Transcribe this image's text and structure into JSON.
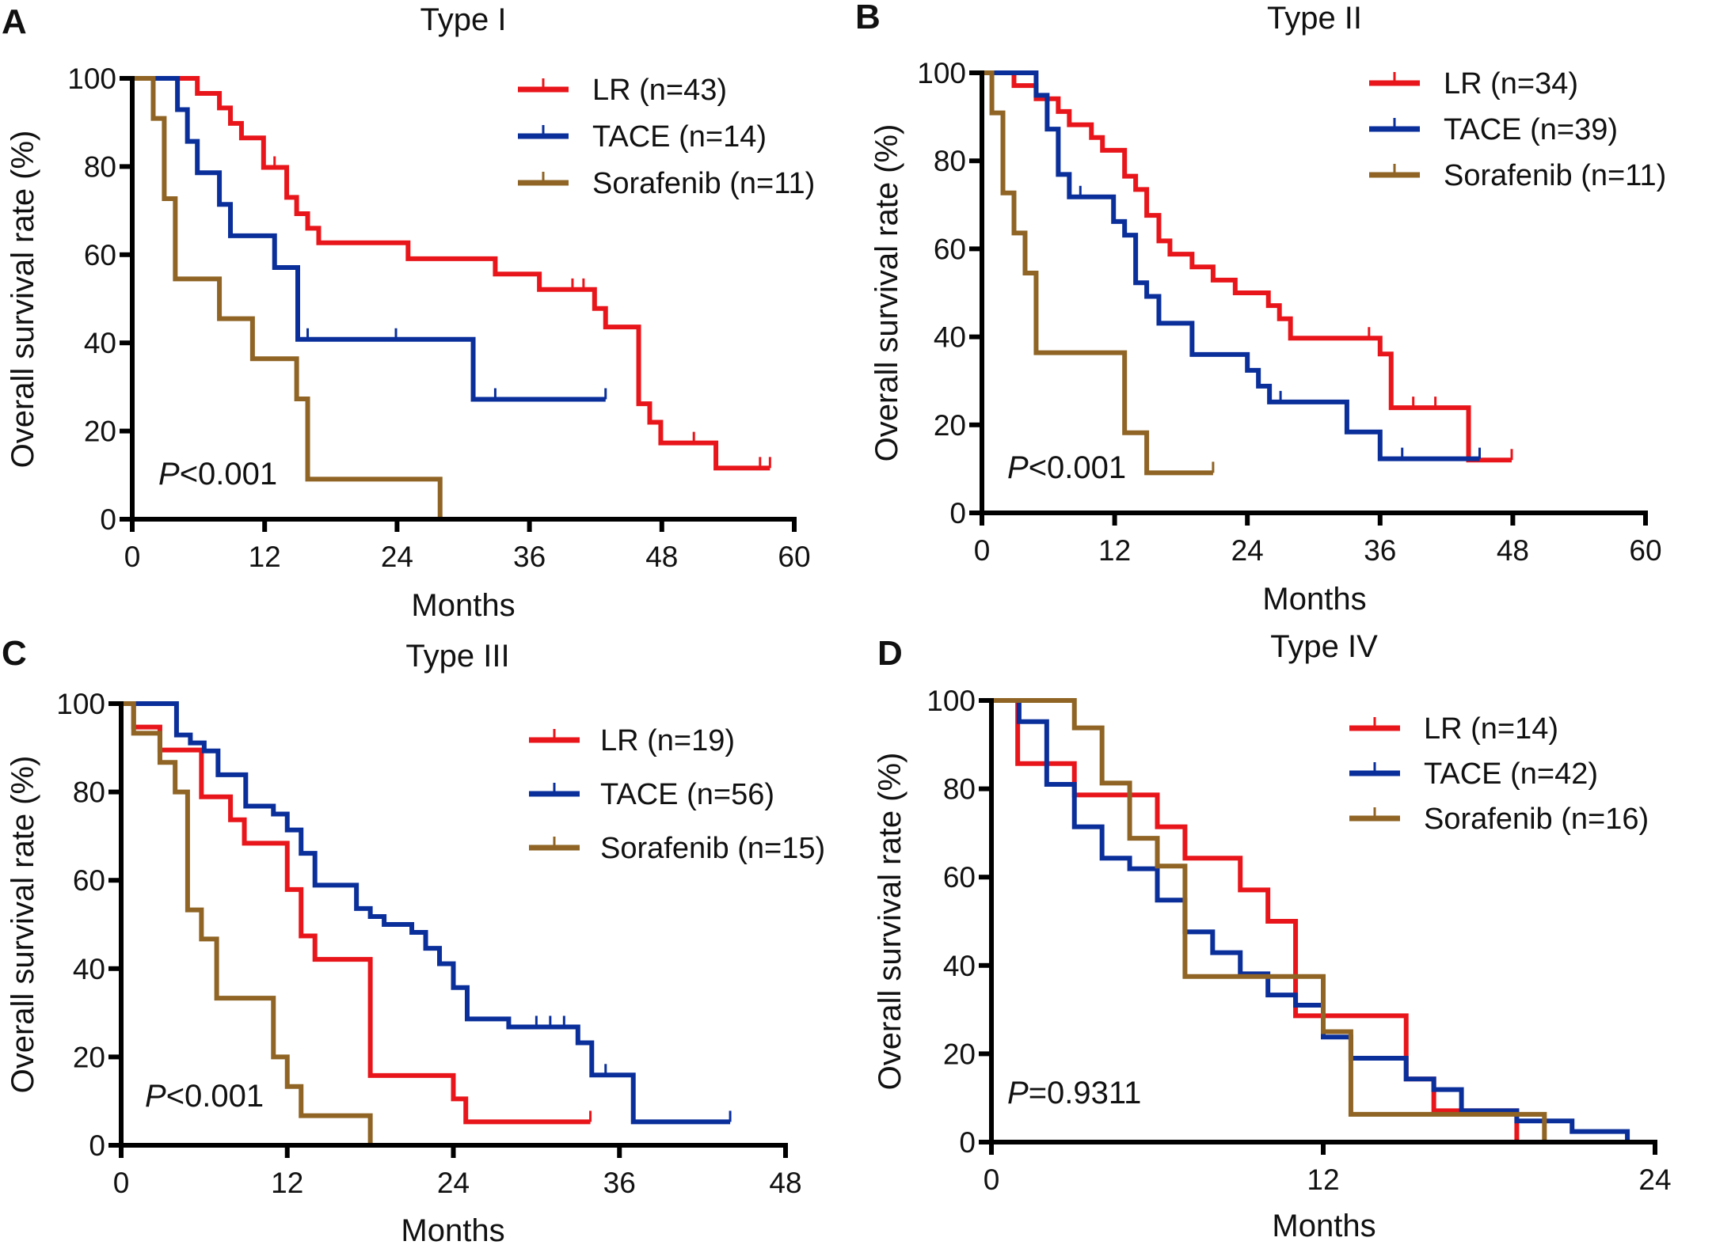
{
  "figure": {
    "colors": {
      "LR": "#e8161b",
      "TACE": "#0a2f9b",
      "Sorafenib": "#8f6424"
    }
  },
  "chart_data": [
    {
      "panel": "A",
      "type": "line",
      "subtype": "kaplan-meier step",
      "title": "Type I",
      "xlabel": "Months",
      "ylabel": "Overall survival rate (%)",
      "xlim": [
        0,
        60
      ],
      "ylim": [
        0,
        100
      ],
      "xticks": [
        0,
        12,
        24,
        36,
        48,
        60
      ],
      "yticks": [
        0,
        20,
        40,
        60,
        80,
        100
      ],
      "annotation": {
        "italic": "P",
        "rest": "<0.001"
      },
      "legend_position": "top-right",
      "series": [
        {
          "name": "LR (n=43)",
          "group": "LR",
          "steps": [
            [
              0,
              100
            ],
            [
              5.9,
              96.6
            ],
            [
              7.9,
              93.3
            ],
            [
              8.9,
              89.8
            ],
            [
              9.9,
              86.5
            ],
            [
              11.9,
              79.8
            ],
            [
              14.0,
              73.0
            ],
            [
              14.9,
              69.3
            ],
            [
              15.9,
              66.0
            ],
            [
              16.9,
              62.7
            ],
            [
              25.0,
              59.1
            ],
            [
              32.9,
              55.6
            ],
            [
              36.9,
              52.1
            ],
            [
              41.9,
              47.8
            ],
            [
              42.9,
              43.6
            ],
            [
              45.9,
              26.2
            ],
            [
              46.9,
              22.0
            ],
            [
              47.9,
              17.3
            ],
            [
              52.9,
              11.6
            ]
          ],
          "end": 57.8,
          "censored": [
            12.9,
            39.9,
            40.9,
            50.9,
            56.9,
            57.8
          ]
        },
        {
          "name": "TACE (n=14)",
          "group": "TACE",
          "steps": [
            [
              0,
              100
            ],
            [
              4.1,
              92.9
            ],
            [
              5.0,
              85.7
            ],
            [
              5.9,
              78.6
            ],
            [
              7.9,
              71.4
            ],
            [
              8.9,
              64.3
            ],
            [
              12.9,
              57.1
            ],
            [
              15.0,
              40.8
            ],
            [
              30.9,
              27.2
            ]
          ],
          "end": 42.9,
          "censored": [
            15.9,
            23.9,
            32.9,
            42.9
          ]
        },
        {
          "name": "Sorafenib (n=11)",
          "group": "Sorafenib",
          "steps": [
            [
              0,
              100
            ],
            [
              1.9,
              90.9
            ],
            [
              2.9,
              72.7
            ],
            [
              3.9,
              54.5
            ],
            [
              7.9,
              45.5
            ],
            [
              10.9,
              36.4
            ],
            [
              14.9,
              27.3
            ],
            [
              15.9,
              9.1
            ],
            [
              27.9,
              0
            ]
          ],
          "end": 27.9,
          "censored": []
        }
      ]
    },
    {
      "panel": "B",
      "type": "line",
      "subtype": "kaplan-meier step",
      "title": "Type II",
      "xlabel": "Months",
      "ylabel": "Overall survival rate (%)",
      "xlim": [
        0,
        60
      ],
      "ylim": [
        0,
        100
      ],
      "xticks": [
        0,
        12,
        24,
        36,
        48,
        60
      ],
      "yticks": [
        0,
        20,
        40,
        60,
        80,
        100
      ],
      "annotation": {
        "italic": "P",
        "rest": "<0.001"
      },
      "legend_position": "top-right",
      "series": [
        {
          "name": "LR (n=34)",
          "group": "LR",
          "steps": [
            [
              0,
              100
            ],
            [
              2.9,
              97.1
            ],
            [
              4.9,
              94.1
            ],
            [
              6.9,
              91.2
            ],
            [
              7.9,
              88.2
            ],
            [
              9.9,
              85.3
            ],
            [
              10.9,
              82.4
            ],
            [
              12.9,
              76.5
            ],
            [
              13.9,
              73.5
            ],
            [
              14.9,
              67.6
            ],
            [
              16.0,
              61.8
            ],
            [
              17.0,
              58.8
            ],
            [
              19.0,
              55.9
            ],
            [
              20.9,
              52.9
            ],
            [
              22.9,
              50.0
            ],
            [
              25.9,
              47.1
            ],
            [
              26.9,
              44.1
            ],
            [
              27.9,
              39.7
            ],
            [
              36.0,
              36.1
            ],
            [
              37.0,
              23.9
            ],
            [
              44.0,
              12.0
            ]
          ],
          "end": 47.9,
          "censored": [
            35.0,
            39.0,
            41.0,
            47.9
          ]
        },
        {
          "name": "TACE (n=39)",
          "group": "TACE",
          "steps": [
            [
              0,
              100
            ],
            [
              4.9,
              94.9
            ],
            [
              5.9,
              87.2
            ],
            [
              6.9,
              76.9
            ],
            [
              7.9,
              71.8
            ],
            [
              11.9,
              66.2
            ],
            [
              12.9,
              63.1
            ],
            [
              13.9,
              52.3
            ],
            [
              14.9,
              49.2
            ],
            [
              16.0,
              43.1
            ],
            [
              19.0,
              36.0
            ],
            [
              24.0,
              32.4
            ],
            [
              25.0,
              28.8
            ],
            [
              26.0,
              25.2
            ],
            [
              33.0,
              18.4
            ],
            [
              36.0,
              12.3
            ]
          ],
          "end": 45.0,
          "censored": [
            8.9,
            27.0,
            38.0,
            45.0
          ]
        },
        {
          "name": "Sorafenib (n=11)",
          "group": "Sorafenib",
          "steps": [
            [
              0,
              100
            ],
            [
              0.9,
              90.9
            ],
            [
              1.9,
              72.7
            ],
            [
              2.9,
              63.6
            ],
            [
              3.9,
              54.5
            ],
            [
              4.9,
              36.4
            ],
            [
              12.9,
              18.2
            ],
            [
              14.9,
              9.1
            ]
          ],
          "end": 20.9,
          "censored": [
            20.9
          ]
        }
      ]
    },
    {
      "panel": "C",
      "type": "line",
      "subtype": "kaplan-meier step",
      "title": "Type III",
      "xlabel": "Months",
      "ylabel": "Overall survival rate (%)",
      "xlim": [
        0,
        48
      ],
      "ylim": [
        0,
        100
      ],
      "xticks": [
        0,
        12,
        24,
        36,
        48
      ],
      "yticks": [
        0,
        20,
        40,
        60,
        80,
        100
      ],
      "annotation": {
        "italic": "P",
        "rest": "<0.001"
      },
      "legend_position": "top-right",
      "series": [
        {
          "name": "LR (n=19)",
          "group": "LR",
          "steps": [
            [
              0,
              100
            ],
            [
              0.9,
              94.7
            ],
            [
              2.8,
              89.5
            ],
            [
              5.8,
              78.9
            ],
            [
              7.9,
              73.7
            ],
            [
              8.9,
              68.4
            ],
            [
              12.0,
              57.9
            ],
            [
              13.0,
              47.4
            ],
            [
              14.0,
              42.1
            ],
            [
              18.0,
              15.8
            ],
            [
              24.0,
              10.5
            ],
            [
              24.9,
              5.3
            ]
          ],
          "end": 33.9,
          "censored": [
            33.9
          ]
        },
        {
          "name": "TACE (n=56)",
          "group": "TACE",
          "steps": [
            [
              0,
              100
            ],
            [
              4.0,
              92.9
            ],
            [
              5.0,
              91.1
            ],
            [
              6.0,
              89.3
            ],
            [
              7.0,
              83.9
            ],
            [
              9.0,
              76.8
            ],
            [
              11.0,
              75.0
            ],
            [
              12.0,
              71.4
            ],
            [
              13.0,
              66.1
            ],
            [
              14.0,
              58.9
            ],
            [
              17.0,
              53.6
            ],
            [
              18.0,
              51.8
            ],
            [
              19.0,
              50.0
            ],
            [
              21.0,
              48.2
            ],
            [
              22.0,
              44.6
            ],
            [
              23.0,
              41.1
            ],
            [
              24.0,
              35.7
            ],
            [
              25.0,
              28.6
            ],
            [
              28.0,
              26.8
            ],
            [
              33.0,
              23.2
            ],
            [
              34.0,
              15.9
            ],
            [
              37.0,
              5.3
            ]
          ],
          "end": 44.0,
          "censored": [
            30.0,
            31.0,
            32.0,
            35.0,
            44.0
          ]
        },
        {
          "name": "Sorafenib (n=15)",
          "group": "Sorafenib",
          "steps": [
            [
              0,
              100
            ],
            [
              0.9,
              93.3
            ],
            [
              2.8,
              86.7
            ],
            [
              3.9,
              80.0
            ],
            [
              4.8,
              53.3
            ],
            [
              5.8,
              46.7
            ],
            [
              6.9,
              33.3
            ],
            [
              11.0,
              20.0
            ],
            [
              12.0,
              13.3
            ],
            [
              13.0,
              6.7
            ],
            [
              18.0,
              0
            ]
          ],
          "end": 18.0,
          "censored": []
        }
      ]
    },
    {
      "panel": "D",
      "type": "line",
      "subtype": "kaplan-meier step",
      "title": "Type IV",
      "xlabel": "Months",
      "ylabel": "Overall survival rate (%)",
      "xlim": [
        0,
        24
      ],
      "ylim": [
        0,
        100
      ],
      "xticks": [
        0,
        12,
        24
      ],
      "yticks": [
        0,
        20,
        40,
        60,
        80,
        100
      ],
      "annotation": {
        "italic": "P",
        "rest": "=0.9311"
      },
      "legend_position": "top-right",
      "series": [
        {
          "name": "LR (n=14)",
          "group": "LR",
          "steps": [
            [
              0,
              100
            ],
            [
              0.95,
              85.7
            ],
            [
              3.0,
              78.6
            ],
            [
              6.0,
              71.4
            ],
            [
              7.0,
              64.3
            ],
            [
              9.0,
              57.1
            ],
            [
              10.0,
              50.0
            ],
            [
              11.0,
              28.6
            ],
            [
              15.0,
              14.3
            ],
            [
              16.0,
              7.1
            ],
            [
              19.0,
              0
            ]
          ],
          "end": 19.0,
          "censored": []
        },
        {
          "name": "TACE (n=42)",
          "group": "TACE",
          "steps": [
            [
              0,
              100
            ],
            [
              1.0,
              95.2
            ],
            [
              2.0,
              81.0
            ],
            [
              3.0,
              71.4
            ],
            [
              4.0,
              64.3
            ],
            [
              5.0,
              61.9
            ],
            [
              6.0,
              54.8
            ],
            [
              7.0,
              47.6
            ],
            [
              8.0,
              42.9
            ],
            [
              9.0,
              38.1
            ],
            [
              10.0,
              33.3
            ],
            [
              11.0,
              31.0
            ],
            [
              12.0,
              23.8
            ],
            [
              13.0,
              19.0
            ],
            [
              15.0,
              14.3
            ],
            [
              16.0,
              11.9
            ],
            [
              17.0,
              7.1
            ],
            [
              19.0,
              4.8
            ],
            [
              21.0,
              2.4
            ],
            [
              23.0,
              0
            ]
          ],
          "end": 23.0,
          "censored": []
        },
        {
          "name": "Sorafenib (n=16)",
          "group": "Sorafenib",
          "steps": [
            [
              0,
              100
            ],
            [
              3.0,
              93.8
            ],
            [
              4.0,
              81.3
            ],
            [
              5.0,
              68.8
            ],
            [
              6.0,
              62.5
            ],
            [
              7.0,
              37.5
            ],
            [
              12.0,
              25.0
            ],
            [
              13.0,
              6.3
            ],
            [
              20.0,
              0
            ]
          ],
          "end": 20.0,
          "censored": []
        }
      ]
    }
  ]
}
